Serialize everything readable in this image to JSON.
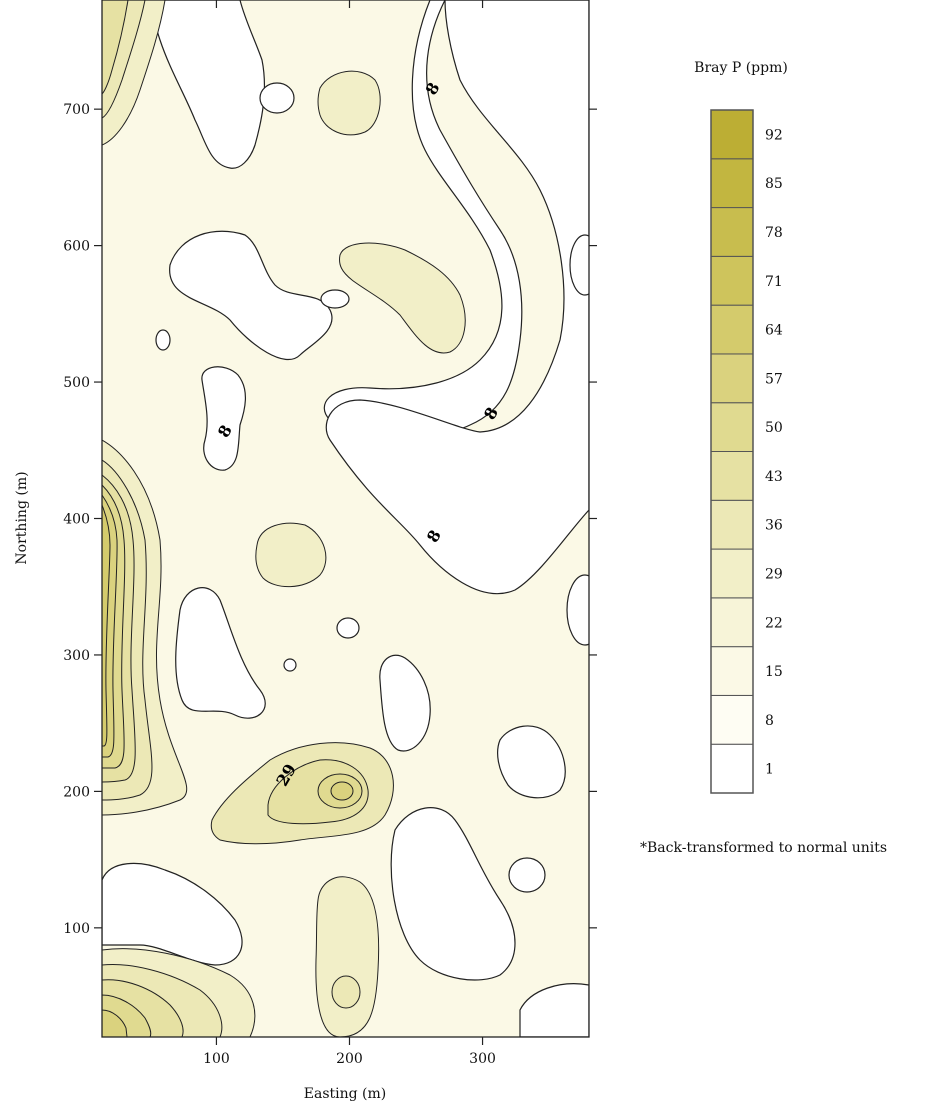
{
  "chart_data": {
    "type": "heatmap",
    "subtype": "filled contour map",
    "xlabel": "Easting (m)",
    "ylabel": "Northing (m)",
    "xlim": [
      14,
      380
    ],
    "ylim": [
      20,
      780
    ],
    "x_ticks": [
      100,
      200,
      300
    ],
    "y_ticks": [
      100,
      200,
      300,
      400,
      500,
      600,
      700
    ],
    "contour_labels": [
      {
        "text": "8",
        "x": 266,
        "y": 713
      },
      {
        "text": "8",
        "x": 110,
        "y": 462
      },
      {
        "text": "8",
        "x": 310,
        "y": 475
      },
      {
        "text": "8",
        "x": 267,
        "y": 385
      },
      {
        "text": "29",
        "x": 156,
        "y": 210
      }
    ],
    "legend": {
      "title": "Bray P (ppm)",
      "placement": "right",
      "levels": [
        {
          "label": "1",
          "value": 1,
          "color": "#ffffff"
        },
        {
          "label": "8",
          "value": 8,
          "color": "#fefdf3"
        },
        {
          "label": "15",
          "value": 15,
          "color": "#fbf9e6"
        },
        {
          "label": "22",
          "value": 22,
          "color": "#f7f4d8"
        },
        {
          "label": "29",
          "value": 29,
          "color": "#f2efc8"
        },
        {
          "label": "36",
          "value": 36,
          "color": "#ece8b6"
        },
        {
          "label": "43",
          "value": 43,
          "color": "#e6e1a3"
        },
        {
          "label": "50",
          "value": 50,
          "color": "#e0da90"
        },
        {
          "label": "57",
          "value": 57,
          "color": "#dad27e"
        },
        {
          "label": "64",
          "value": 64,
          "color": "#d4cb6c"
        },
        {
          "label": "71",
          "value": 71,
          "color": "#cec45c"
        },
        {
          "label": "78",
          "value": 78,
          "color": "#c8bd4e"
        },
        {
          "label": "85",
          "value": 85,
          "color": "#c2b640"
        },
        {
          "label": "92",
          "value": 92,
          "color": "#bcae34"
        }
      ]
    },
    "note": "*Back-transformed to normal units"
  }
}
